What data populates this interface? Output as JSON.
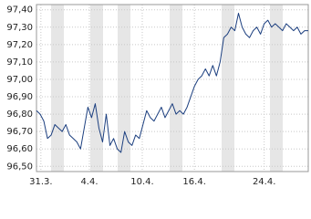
{
  "chart_data": {
    "type": "line",
    "series": [
      {
        "color": "#1c3f7f",
        "values": [
          96.82,
          96.8,
          96.76,
          96.66,
          96.68,
          96.74,
          96.72,
          96.7,
          96.74,
          96.68,
          96.66,
          96.64,
          96.6,
          96.72,
          96.84,
          96.78,
          96.86,
          96.72,
          96.64,
          96.8,
          96.62,
          96.66,
          96.6,
          96.58,
          96.7,
          96.64,
          96.62,
          96.68,
          96.66,
          96.74,
          96.82,
          96.78,
          96.76,
          96.8,
          96.84,
          96.78,
          96.82,
          96.86,
          96.8,
          96.82,
          96.8,
          96.84,
          96.9,
          96.96,
          97.0,
          97.02,
          97.06,
          97.02,
          97.08,
          97.02,
          97.1,
          97.24,
          97.26,
          97.3,
          97.28,
          97.38,
          97.3,
          97.26,
          97.24,
          97.28,
          97.3,
          97.26,
          97.32,
          97.34,
          97.3,
          97.32,
          97.3,
          97.28,
          97.32,
          97.3,
          97.28,
          97.3,
          97.26,
          97.28,
          97.28
        ]
      }
    ],
    "xlim": [
      0,
      74
    ],
    "xticks": [
      {
        "value": 1.2,
        "label": "31.3."
      },
      {
        "value": 14.4,
        "label": "4.4."
      },
      {
        "value": 28.8,
        "label": "10.4."
      },
      {
        "value": 43,
        "label": "16.4."
      },
      {
        "value": 62,
        "label": "24.4."
      }
    ],
    "ylim": [
      96.47,
      97.43
    ],
    "yticks": [
      {
        "value": 96.5,
        "label": "96,50"
      },
      {
        "value": 96.6,
        "label": "96,60"
      },
      {
        "value": 96.7,
        "label": "96,70"
      },
      {
        "value": 96.8,
        "label": "96,80"
      },
      {
        "value": 96.9,
        "label": "96,90"
      },
      {
        "value": 97.0,
        "label": "97,00"
      },
      {
        "value": 97.1,
        "label": "97,10"
      },
      {
        "value": 97.2,
        "label": "97,20"
      },
      {
        "value": 97.3,
        "label": "97,30"
      },
      {
        "value": 97.4,
        "label": "97,40"
      }
    ],
    "grid": true
  }
}
